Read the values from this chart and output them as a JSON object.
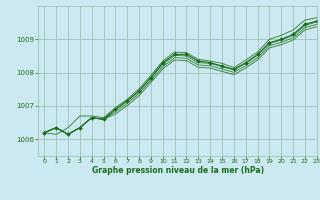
{
  "xlabel": "Graphe pression niveau de la mer (hPa)",
  "bg_color": "#cce8f0",
  "line_color": "#1a6e1a",
  "grid_color": "#99bbaa",
  "text_color": "#1a6e1a",
  "xlim": [
    -0.5,
    23
  ],
  "ylim": [
    1005.5,
    1010.0
  ],
  "yticks": [
    1006,
    1007,
    1008,
    1009
  ],
  "xticks": [
    0,
    1,
    2,
    3,
    4,
    5,
    6,
    7,
    8,
    9,
    10,
    11,
    12,
    13,
    14,
    15,
    16,
    17,
    18,
    19,
    20,
    21,
    22,
    23
  ],
  "band_series": [
    [
      1006.2,
      1006.35,
      1006.15,
      1006.35,
      1006.65,
      1006.6,
      1006.9,
      1007.15,
      1007.45,
      1007.85,
      1008.25,
      1008.52,
      1008.5,
      1008.3,
      1008.28,
      1008.18,
      1008.08,
      1008.28,
      1008.52,
      1008.88,
      1008.98,
      1009.12,
      1009.42,
      1009.52
    ],
    [
      1006.2,
      1006.35,
      1006.15,
      1006.35,
      1006.65,
      1006.6,
      1006.83,
      1007.08,
      1007.38,
      1007.78,
      1008.18,
      1008.45,
      1008.43,
      1008.23,
      1008.21,
      1008.11,
      1008.01,
      1008.21,
      1008.45,
      1008.81,
      1008.91,
      1009.05,
      1009.35,
      1009.45
    ],
    [
      1006.2,
      1006.35,
      1006.15,
      1006.35,
      1006.65,
      1006.6,
      1006.76,
      1007.01,
      1007.31,
      1007.71,
      1008.11,
      1008.38,
      1008.36,
      1008.16,
      1008.14,
      1008.04,
      1007.94,
      1008.14,
      1008.38,
      1008.74,
      1008.84,
      1008.98,
      1009.28,
      1009.38
    ]
  ],
  "main_series": [
    1006.2,
    1006.35,
    1006.15,
    1006.35,
    1006.65,
    1006.6,
    1006.9,
    1007.15,
    1007.45,
    1007.85,
    1008.3,
    1008.55,
    1008.55,
    1008.35,
    1008.3,
    1008.2,
    1008.1,
    1008.3,
    1008.55,
    1008.9,
    1009.0,
    1009.15,
    1009.45,
    1009.55
  ],
  "top_series": [
    1006.2,
    1006.15,
    1006.35,
    1006.7,
    1006.7,
    1006.65,
    1006.95,
    1007.2,
    1007.52,
    1007.92,
    1008.35,
    1008.62,
    1008.6,
    1008.4,
    1008.35,
    1008.28,
    1008.15,
    1008.38,
    1008.62,
    1009.0,
    1009.12,
    1009.28,
    1009.58,
    1009.65
  ]
}
